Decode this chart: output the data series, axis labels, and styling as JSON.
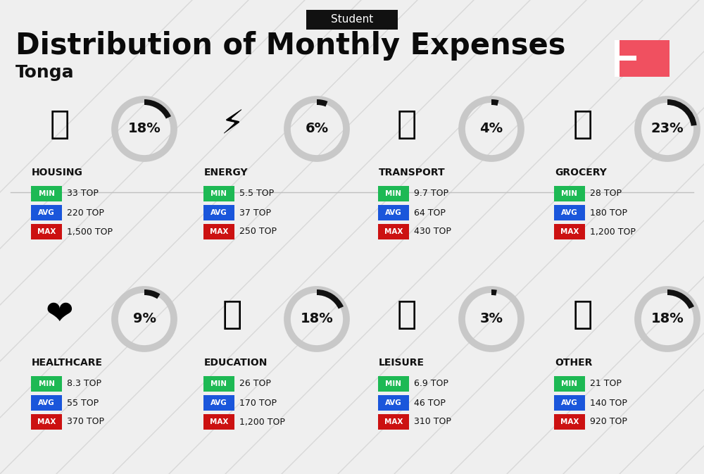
{
  "title": "Distribution of Monthly Expenses",
  "subtitle": "Student",
  "country": "Tonga",
  "bg_color": "#efefef",
  "categories": [
    {
      "name": "HOUSING",
      "pct": 18,
      "emoji": "🏢",
      "min_val": "33 TOP",
      "avg_val": "220 TOP",
      "max_val": "1,500 TOP",
      "row": 0,
      "col": 0
    },
    {
      "name": "ENERGY",
      "pct": 6,
      "emoji": "⚡",
      "min_val": "5.5 TOP",
      "avg_val": "37 TOP",
      "max_val": "250 TOP",
      "row": 0,
      "col": 1
    },
    {
      "name": "TRANSPORT",
      "pct": 4,
      "emoji": "🚌",
      "min_val": "9.7 TOP",
      "avg_val": "64 TOP",
      "max_val": "430 TOP",
      "row": 0,
      "col": 2
    },
    {
      "name": "GROCERY",
      "pct": 23,
      "emoji": "🛒",
      "min_val": "28 TOP",
      "avg_val": "180 TOP",
      "max_val": "1,200 TOP",
      "row": 0,
      "col": 3
    },
    {
      "name": "HEALTHCARE",
      "pct": 9,
      "emoji": "❤️",
      "min_val": "8.3 TOP",
      "avg_val": "55 TOP",
      "max_val": "370 TOP",
      "row": 1,
      "col": 0
    },
    {
      "name": "EDUCATION",
      "pct": 18,
      "emoji": "🎓",
      "min_val": "26 TOP",
      "avg_val": "170 TOP",
      "max_val": "1,200 TOP",
      "row": 1,
      "col": 1
    },
    {
      "name": "LEISURE",
      "pct": 3,
      "emoji": "🛍️",
      "min_val": "6.9 TOP",
      "avg_val": "46 TOP",
      "max_val": "310 TOP",
      "row": 1,
      "col": 2
    },
    {
      "name": "OTHER",
      "pct": 18,
      "emoji": "👜",
      "min_val": "21 TOP",
      "avg_val": "140 TOP",
      "max_val": "920 TOP",
      "row": 1,
      "col": 3
    }
  ],
  "min_color": "#1db954",
  "avg_color": "#1a56db",
  "max_color": "#cc1111",
  "arc_color": "#111111",
  "arc_bg_color": "#c8c8c8",
  "flag_red": "#f05060",
  "arc_lw": 7,
  "arc_bg_lw": 7
}
